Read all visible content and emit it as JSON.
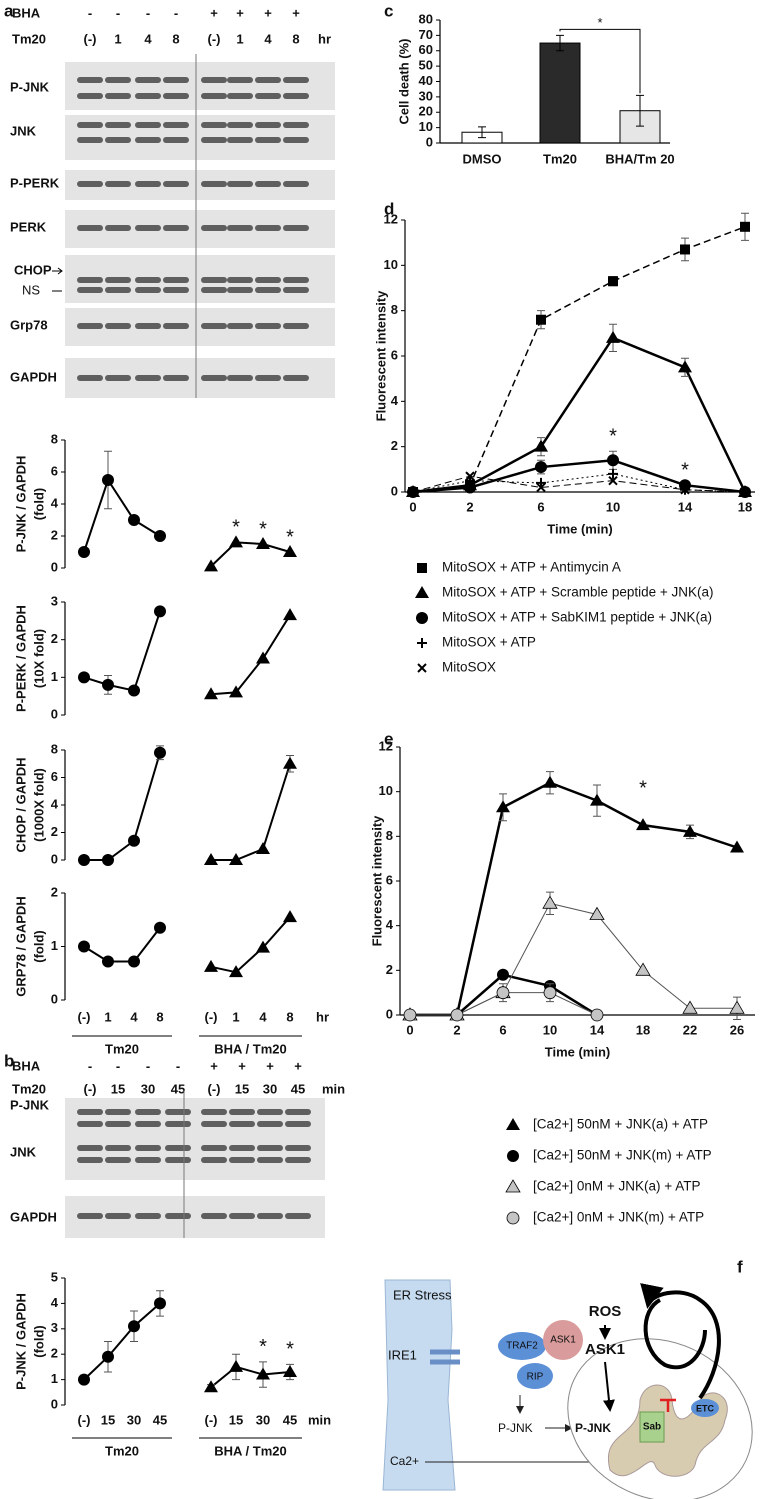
{
  "panel_letters": [
    "a",
    "b",
    "c",
    "d",
    "e",
    "f"
  ],
  "blots": [
    {
      "bha_label": "BHA",
      "bha_signs": [
        "-",
        "-",
        "-",
        "-",
        "+",
        "+",
        "+",
        "+"
      ],
      "tm_label": "Tm20",
      "tm_lanes": [
        "(-)",
        "1",
        "4",
        "8",
        "(-)",
        "1",
        "4",
        "8"
      ],
      "unit": "hr",
      "rows": [
        "P-JNK",
        "JNK",
        "P-PERK",
        "PERK",
        "CHOP",
        "NS",
        "Grp78",
        "GAPDH"
      ]
    },
    {
      "bha_label": "BHA",
      "bha_signs": [
        "-",
        "-",
        "-",
        "-",
        "+",
        "+",
        "+",
        "+"
      ],
      "tm_label": "Tm20",
      "tm_lanes": [
        "(-)",
        "15",
        "30",
        "45",
        "(-)",
        "15",
        "30",
        "45"
      ],
      "unit": "min",
      "rows": [
        "P-JNK",
        "JNK",
        "GAPDH"
      ]
    }
  ],
  "chart_data": [
    {
      "type": "line",
      "y_label": [
        "P-JNK / GAPDH",
        "(fold)"
      ],
      "ylim": [
        0,
        8
      ],
      "yticks": [
        0,
        2,
        4,
        6,
        8
      ],
      "series": [
        {
          "marker": "circle",
          "color": "#000000",
          "line_width": 2,
          "values": [
            1,
            5.5,
            3,
            2,
            null,
            null,
            null,
            null
          ],
          "errors": [
            null,
            1.8,
            null,
            null,
            null,
            null,
            null,
            null
          ]
        },
        {
          "marker": "triangle",
          "color": "#000000",
          "line_width": 2,
          "values": [
            null,
            null,
            null,
            null,
            0.1,
            1.6,
            1.5,
            1.0
          ],
          "significance": [
            null,
            null,
            null,
            null,
            null,
            "*",
            "*",
            "*"
          ]
        }
      ]
    },
    {
      "type": "line",
      "y_label": [
        "P-PERK / GAPDH",
        "(10X fold)"
      ],
      "ylim": [
        0,
        3
      ],
      "yticks": [
        0,
        1,
        2,
        3
      ],
      "series": [
        {
          "marker": "circle",
          "color": "#000000",
          "line_width": 2,
          "values": [
            1.0,
            0.8,
            0.65,
            2.75,
            null,
            null,
            null,
            null
          ],
          "errors": [
            null,
            0.25,
            null,
            null,
            null,
            null,
            null,
            null
          ]
        },
        {
          "marker": "triangle",
          "color": "#000000",
          "line_width": 2,
          "values": [
            null,
            null,
            null,
            null,
            0.55,
            0.6,
            1.5,
            2.65
          ]
        }
      ]
    },
    {
      "type": "line",
      "y_label": [
        "CHOP / GAPDH",
        "(1000X fold)"
      ],
      "ylim": [
        0,
        8
      ],
      "yticks": [
        0,
        2,
        4,
        6,
        8
      ],
      "series": [
        {
          "marker": "circle",
          "color": "#000000",
          "line_width": 2,
          "values": [
            0,
            0,
            1.4,
            7.8,
            null,
            null,
            null,
            null
          ],
          "errors": [
            null,
            null,
            null,
            0.5,
            null,
            null,
            null,
            null
          ]
        },
        {
          "marker": "triangle",
          "color": "#000000",
          "line_width": 2,
          "values": [
            null,
            null,
            null,
            null,
            0,
            0,
            0.8,
            7.0
          ],
          "errors": [
            null,
            null,
            null,
            null,
            null,
            null,
            null,
            0.6
          ]
        }
      ]
    },
    {
      "type": "line",
      "y_label": [
        "GRP78 / GAPDH",
        "(fold)"
      ],
      "ylim": [
        0,
        2
      ],
      "yticks": [
        0,
        1,
        2
      ],
      "categories": [
        "(-)",
        "1",
        "4",
        "8",
        "(-)",
        "1",
        "4",
        "8"
      ],
      "x_unit": "hr",
      "groups": [
        "Tm20",
        "BHA / Tm20"
      ],
      "series": [
        {
          "marker": "circle",
          "color": "#000000",
          "line_width": 2,
          "values": [
            1.0,
            0.72,
            0.72,
            1.35,
            null,
            null,
            null,
            null
          ]
        },
        {
          "marker": "triangle",
          "color": "#000000",
          "line_width": 2,
          "values": [
            null,
            null,
            null,
            null,
            0.62,
            0.52,
            0.98,
            1.55
          ]
        }
      ]
    },
    {
      "type": "line",
      "y_label": [
        "P-JNK / GAPDH",
        "(fold)"
      ],
      "ylim": [
        0,
        5
      ],
      "yticks": [
        0,
        1,
        2,
        3,
        4,
        5
      ],
      "categories": [
        "(-)",
        "15",
        "30",
        "45",
        "(-)",
        "15",
        "30",
        "45"
      ],
      "x_unit": "min",
      "groups": [
        "Tm20",
        "BHA / Tm20"
      ],
      "series": [
        {
          "marker": "circle",
          "color": "#000000",
          "line_width": 2,
          "values": [
            1,
            1.9,
            3.1,
            4.0,
            null,
            null,
            null,
            null
          ],
          "errors": [
            0.15,
            0.6,
            0.6,
            0.5,
            null,
            null,
            null,
            null
          ]
        },
        {
          "marker": "triangle",
          "color": "#000000",
          "line_width": 2,
          "values": [
            null,
            null,
            null,
            null,
            0.7,
            1.5,
            1.2,
            1.3
          ],
          "errors": [
            null,
            null,
            null,
            null,
            0.1,
            0.5,
            0.5,
            0.3
          ],
          "significance": [
            null,
            null,
            null,
            null,
            null,
            null,
            "*",
            "*"
          ]
        }
      ]
    },
    {
      "type": "bar",
      "y_label": "Cell death (%)",
      "ylim": [
        0,
        80
      ],
      "yticks": [
        0,
        10,
        20,
        30,
        40,
        50,
        60,
        70,
        80
      ],
      "categories": [
        "DMSO",
        "Tm20",
        "BHA/Tm 20"
      ],
      "values": [
        7,
        65,
        21
      ],
      "errors": [
        3.5,
        5,
        10
      ],
      "colors": [
        "#ffffff",
        "#2a2a2a",
        "#e6e6e6"
      ],
      "significance": {
        "text": "*",
        "between": [
          1,
          2
        ]
      }
    },
    {
      "type": "line",
      "y_label": "Fluorescent intensity",
      "x_label": "Time (min)",
      "ylim": [
        0,
        12
      ],
      "yticks": [
        0,
        2,
        4,
        6,
        8,
        10,
        12
      ],
      "categories": [
        "0",
        "2",
        "6",
        "10",
        "14",
        "18"
      ],
      "series": [
        {
          "name": "MitoSOX + ATP + Antimycin A",
          "marker": "square",
          "color": "#000000",
          "dash": "dashed",
          "line_width": 1.5,
          "values": [
            0,
            0.3,
            7.6,
            9.3,
            10.7,
            11.7
          ],
          "errors": [
            null,
            null,
            0.4,
            0.2,
            0.5,
            0.6
          ]
        },
        {
          "name": "MitoSOX + ATP + Scramble peptide + JNK(a)",
          "marker": "triangle",
          "color": "#000000",
          "line_width": 2.5,
          "values": [
            0,
            0.3,
            2.0,
            6.8,
            5.5,
            0
          ],
          "errors": [
            null,
            null,
            0.4,
            0.6,
            0.4,
            null
          ]
        },
        {
          "name": "MitoSOX + ATP + SabKIM1 peptide + JNK(a)",
          "marker": "circle",
          "color": "#000000",
          "line_width": 2.5,
          "values": [
            0,
            0.2,
            1.1,
            1.4,
            0.3,
            0
          ],
          "errors": [
            null,
            null,
            0.3,
            0.4,
            null,
            null
          ],
          "significance": [
            null,
            null,
            null,
            "*",
            "*",
            null
          ]
        },
        {
          "name": "MitoSOX + ATP",
          "marker": "plus",
          "color": "#000000",
          "dash": "dotted",
          "line_width": 1,
          "values": [
            0,
            0.5,
            0.4,
            0.8,
            0.1,
            0
          ]
        },
        {
          "name": "MitoSOX",
          "marker": "x",
          "color": "#000000",
          "dash": "dashed",
          "line_width": 1,
          "values": [
            0,
            0.7,
            0.2,
            0.5,
            0.1,
            0
          ]
        }
      ]
    },
    {
      "type": "line",
      "y_label": "Fluorescent intensity",
      "x_label": "Time (min)",
      "ylim": [
        0,
        12
      ],
      "yticks": [
        0,
        2,
        4,
        6,
        8,
        10,
        12
      ],
      "categories": [
        "0",
        "2",
        "6",
        "10",
        "14",
        "18",
        "22",
        "26"
      ],
      "series": [
        {
          "name": "[Ca2+] 50nM + JNK(a) + ATP",
          "marker": "triangle",
          "color": "#000000",
          "line_width": 2.5,
          "values": [
            0,
            0,
            9.3,
            10.4,
            9.6,
            8.5,
            8.2,
            7.5
          ],
          "errors": [
            null,
            null,
            0.6,
            0.5,
            0.7,
            null,
            0.3,
            null
          ],
          "significance": [
            null,
            null,
            null,
            null,
            null,
            "*",
            null,
            null
          ]
        },
        {
          "name": "[Ca2+] 50nM + JNK(m) + ATP",
          "marker": "circle",
          "color": "#000000",
          "line_width": 2.5,
          "values": [
            0,
            0,
            1.8,
            1.3,
            0,
            null,
            null,
            null
          ]
        },
        {
          "name": "[Ca2+] 0nM + JNK(a) + ATP",
          "marker": "triangle",
          "color": "#c4c4c4",
          "line_width": 1,
          "values": [
            0,
            0,
            1.0,
            5.0,
            4.5,
            2.0,
            0.3,
            0.3
          ],
          "errors": [
            null,
            null,
            null,
            0.5,
            null,
            null,
            null,
            0.5
          ]
        },
        {
          "name": "[Ca2+] 0nM + JNK(m) + ATP",
          "marker": "circle",
          "color": "#c4c4c4",
          "line_width": 1,
          "values": [
            0,
            0,
            1.0,
            1.0,
            0,
            null,
            null,
            null
          ],
          "errors": [
            null,
            null,
            0.4,
            0.4,
            null,
            null,
            null,
            null
          ]
        }
      ]
    }
  ],
  "diagram": {
    "er_stress": "ER Stress",
    "ire1": "IRE1",
    "traf2": "TRAF2",
    "ask1": "ASK1",
    "rip": "RIP",
    "p_jnk_plain": "P-JNK",
    "p_jnk_bold": "P-JNK",
    "sab": "Sab",
    "etc": "ETC",
    "ros": "ROS",
    "ask1_bold": "ASK1",
    "calcium": "Ca2+"
  }
}
